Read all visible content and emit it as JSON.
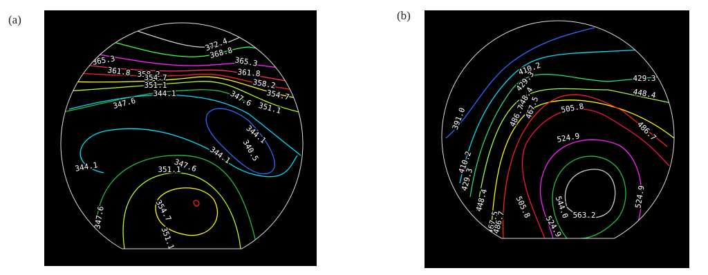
{
  "chart_data": [
    {
      "type": "contour",
      "label": "(a)",
      "levels": [
        340.5,
        344.1,
        347.6,
        351.1,
        354.7,
        358.2,
        361.8,
        365.3,
        368.8,
        372.4
      ],
      "colors": [
        "#2a6bff",
        "#00e0ff",
        "#20c040",
        "#b0ff20",
        "#ffff00",
        "#ff2020",
        "#ff3070",
        "#ff20ff",
        "#40ff40",
        "#d0d0d0"
      ]
    },
    {
      "type": "contour",
      "label": "(b)",
      "levels": [
        {
          "value": 391,
          "label": "391.0"
        },
        410.2,
        429.3,
        448.4,
        467.5,
        486.7,
        505.8,
        524.9,
        {
          "value": 544,
          "label": "544.0"
        },
        563.2
      ],
      "colors": [
        "#2a6bff",
        "#00e0ff",
        "#20e080",
        "#a0ff40",
        "#ffff00",
        "#ff2020",
        "#ff1040",
        "#ff20ff",
        "#20c040",
        "#d0d0d0"
      ]
    }
  ]
}
